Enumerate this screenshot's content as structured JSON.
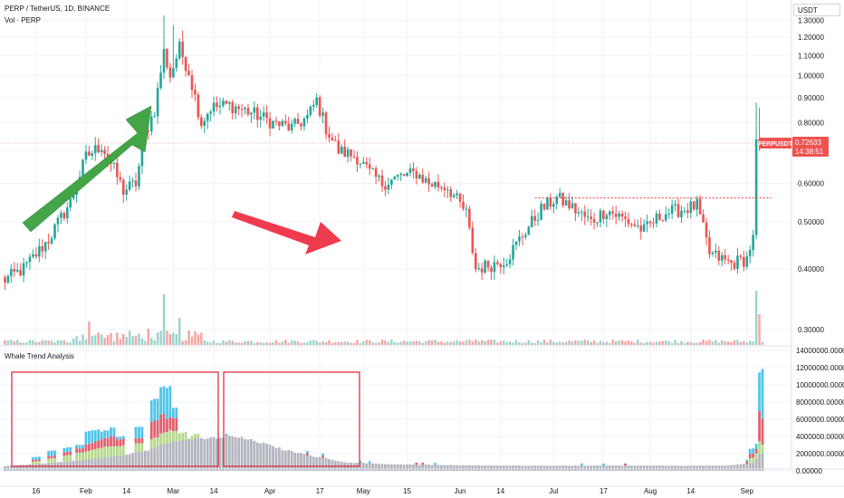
{
  "header": {
    "title": "PERP / TetherUS, 1D, BINANCE",
    "vol_label": "Vol · PERP",
    "currency": "USDT"
  },
  "chart_data": [
    {
      "type": "candlestick",
      "name": "PERP / TetherUS",
      "yscale": "log",
      "ylim": [
        0.28,
        1.36
      ],
      "y_ticks": [
        "1.30000",
        "1.20000",
        "1.10000",
        "1.00000",
        "0.90000",
        "0.80000",
        "0.70000",
        "0.60000",
        "0.50000",
        "0.40000",
        "0.30000"
      ],
      "x_ticks": [
        "16",
        "Feb",
        "14",
        "Mar",
        "14",
        "Apr",
        "17",
        "May",
        "15",
        "Jun",
        "14",
        "Jul",
        "17",
        "Aug",
        "14",
        "Sep"
      ],
      "anchors": [
        {
          "date": "Jan 6",
          "close": 0.38
        },
        {
          "date": "Jan 12",
          "close": 0.4
        },
        {
          "date": "Jan 20",
          "close": 0.46
        },
        {
          "date": "Jan 27",
          "close": 0.55
        },
        {
          "date": "Feb 1",
          "close": 0.68
        },
        {
          "date": "Feb 6",
          "close": 0.72
        },
        {
          "date": "Feb 10",
          "close": 0.64
        },
        {
          "date": "Feb 13",
          "close": 0.58
        },
        {
          "date": "Feb 17",
          "close": 0.6
        },
        {
          "date": "Feb 20",
          "close": 0.76
        },
        {
          "date": "Feb 23",
          "close": 0.85
        },
        {
          "date": "Feb 26",
          "close": 1.12
        },
        {
          "date": "Feb 28",
          "close": 1.0
        },
        {
          "date": "Mar 3",
          "close": 1.14
        },
        {
          "date": "Mar 6",
          "close": 1.02
        },
        {
          "date": "Mar 10",
          "close": 0.8
        },
        {
          "date": "Mar 13",
          "close": 0.86
        },
        {
          "date": "Mar 19",
          "close": 0.87
        },
        {
          "date": "Mar 26",
          "close": 0.84
        },
        {
          "date": "Apr 2",
          "close": 0.8
        },
        {
          "date": "Apr 8",
          "close": 0.78
        },
        {
          "date": "Apr 13",
          "close": 0.82
        },
        {
          "date": "Apr 16",
          "close": 0.89
        },
        {
          "date": "Apr 19",
          "close": 0.78
        },
        {
          "date": "Apr 23",
          "close": 0.7
        },
        {
          "date": "Apr 29",
          "close": 0.68
        },
        {
          "date": "May 3",
          "close": 0.63
        },
        {
          "date": "May 7",
          "close": 0.6
        },
        {
          "date": "May 13",
          "close": 0.62
        },
        {
          "date": "May 18",
          "close": 0.63
        },
        {
          "date": "May 22",
          "close": 0.6
        },
        {
          "date": "May 28",
          "close": 0.59
        },
        {
          "date": "Jun 3",
          "close": 0.52
        },
        {
          "date": "Jun 6",
          "close": 0.4
        },
        {
          "date": "Jun 12",
          "close": 0.41
        },
        {
          "date": "Jun 16",
          "close": 0.42
        },
        {
          "date": "Jun 21",
          "close": 0.47
        },
        {
          "date": "Jun 27",
          "close": 0.53
        },
        {
          "date": "Jul 2",
          "close": 0.56
        },
        {
          "date": "Jul 6",
          "close": 0.54
        },
        {
          "date": "Jul 13",
          "close": 0.5
        },
        {
          "date": "Jul 18",
          "close": 0.53
        },
        {
          "date": "Jul 25",
          "close": 0.5
        },
        {
          "date": "Jul 30",
          "close": 0.48
        },
        {
          "date": "Aug 5",
          "close": 0.52
        },
        {
          "date": "Aug 11",
          "close": 0.53
        },
        {
          "date": "Aug 16",
          "close": 0.54
        },
        {
          "date": "Aug 20",
          "close": 0.43
        },
        {
          "date": "Aug 27",
          "close": 0.41
        },
        {
          "date": "Sep 1",
          "close": 0.42
        },
        {
          "date": "Sep 3",
          "close": 0.47
        },
        {
          "date": "Sep 4",
          "close": 0.74
        },
        {
          "date": "Sep 5",
          "close": 0.72633
        }
      ],
      "last_price": {
        "symbol": "PERPUSDT",
        "price": "0.72633",
        "countdown": "14:38:51"
      },
      "resistance_level": 0.56,
      "colors": {
        "up": "#26a69a",
        "down": "#ef5350",
        "vol_up": "#9ad3cc",
        "vol_down": "#f4a4a2",
        "price_tag": "#ef5350",
        "arrow_up": "#43a547",
        "arrow_down": "#ee3b4d"
      }
    },
    {
      "type": "histogram",
      "name": "Whale Trend Analysis",
      "ylim": [
        0,
        14000000
      ],
      "y_ticks": [
        "14000000.00000",
        "12000000.00000",
        "10000000.00000",
        "8000000.00000",
        "6000000.00000",
        "4000000.00000",
        "2000000.00000",
        "0.00000"
      ],
      "x_ticks": [
        "16",
        "Feb",
        "14",
        "Mar",
        "14",
        "Apr",
        "17",
        "May",
        "15",
        "Jun",
        "14",
        "Jul",
        "17",
        "Aug",
        "14",
        "Sep"
      ],
      "base_anchors": [
        {
          "date": "Jan 6",
          "value": 550000
        },
        {
          "date": "Jan 20",
          "value": 900000
        },
        {
          "date": "Feb 1",
          "value": 1300000
        },
        {
          "date": "Feb 10",
          "value": 1700000
        },
        {
          "date": "Feb 20",
          "value": 2300000
        },
        {
          "date": "Mar 1",
          "value": 3500000
        },
        {
          "date": "Mar 10",
          "value": 3700000
        },
        {
          "date": "Mar 20",
          "value": 4000000
        },
        {
          "date": "Mar 27",
          "value": 3500000
        },
        {
          "date": "Apr 5",
          "value": 2500000
        },
        {
          "date": "Apr 15",
          "value": 1700000
        },
        {
          "date": "Apr 25",
          "value": 1000000
        },
        {
          "date": "May 10",
          "value": 750000
        },
        {
          "date": "Jun 15",
          "value": 600000
        },
        {
          "date": "Aug 25",
          "value": 600000
        },
        {
          "date": "Sep 3",
          "value": 900000
        },
        {
          "date": "Sep 5",
          "value": 2000000
        }
      ],
      "colored_stacks": [
        {
          "date": "Jan 16",
          "green": 300000,
          "red": 200000,
          "blue": 300000
        },
        {
          "date": "Jan 21",
          "green": 500000,
          "red": 300000,
          "blue": 600000
        },
        {
          "date": "Jan 26",
          "green": 700000,
          "red": 400000,
          "blue": 500000
        },
        {
          "date": "Jan 30",
          "green": 900000,
          "red": 500000,
          "blue": 400000
        },
        {
          "date": "Feb 2",
          "green": 1000000,
          "red": 800000,
          "blue": 1500000
        },
        {
          "date": "Feb 4",
          "green": 1100000,
          "red": 900000,
          "blue": 1300000
        },
        {
          "date": "Feb 7",
          "green": 1200000,
          "red": 1000000,
          "blue": 900000
        },
        {
          "date": "Feb 9",
          "green": 1200000,
          "red": 1200000,
          "blue": 1000000
        },
        {
          "date": "Feb 12",
          "green": 1100000,
          "red": 800000,
          "blue": 300000
        },
        {
          "date": "Feb 18",
          "green": 1000000,
          "red": 600000,
          "blue": 1300000
        },
        {
          "date": "Feb 23",
          "green": 1100000,
          "red": 2000000,
          "blue": 2500000
        },
        {
          "date": "Feb 25",
          "green": 1300000,
          "red": 2200000,
          "blue": 3200000
        },
        {
          "date": "Feb 27",
          "green": 1400000,
          "red": 1500000,
          "blue": 3600000
        },
        {
          "date": "Mar 1",
          "green": 1200000,
          "red": 1500000,
          "blue": 1200000
        },
        {
          "date": "Mar 4",
          "green": 900000,
          "red": 0,
          "blue": 0
        },
        {
          "date": "Mar 8",
          "green": 500000,
          "red": 0,
          "blue": 0
        },
        {
          "date": "Sep 3",
          "green": 600000,
          "red": 500000,
          "blue": 600000
        },
        {
          "date": "Sep 4",
          "green": 1500000,
          "red": 3500000,
          "blue": 4500000
        },
        {
          "date": "Sep 5",
          "green": 1000000,
          "red": 3000000,
          "blue": 5800000
        }
      ],
      "colors": {
        "base": "#b2b5be",
        "green": "#b5d98c",
        "red": "#e25e6e",
        "blue": "#4ec4e8",
        "box": "#e0202e"
      }
    }
  ]
}
